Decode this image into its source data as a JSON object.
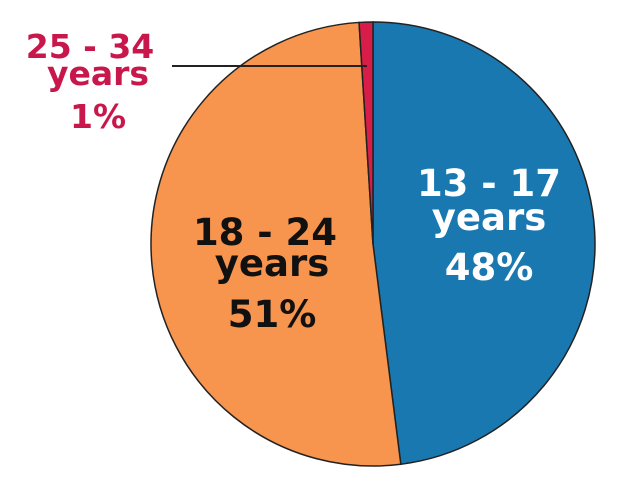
{
  "chart_data": {
    "type": "pie",
    "start_angle_deg": 0,
    "direction": "clockwise",
    "slices": [
      {
        "label_lines": [
          "13 - 17",
          "years",
          "48%"
        ],
        "value": 48,
        "color": "#1a78b0",
        "label_color": "#ffffff"
      },
      {
        "label_lines": [
          "18 - 24",
          "years",
          "51%"
        ],
        "value": 51,
        "color": "#f7944d",
        "label_color": "#111111"
      },
      {
        "label_lines": [
          "25 - 34",
          "years",
          "1%"
        ],
        "value": 1,
        "color": "#d81e48",
        "label_color": "#c8174a"
      }
    ],
    "outline_color": "#222222"
  }
}
